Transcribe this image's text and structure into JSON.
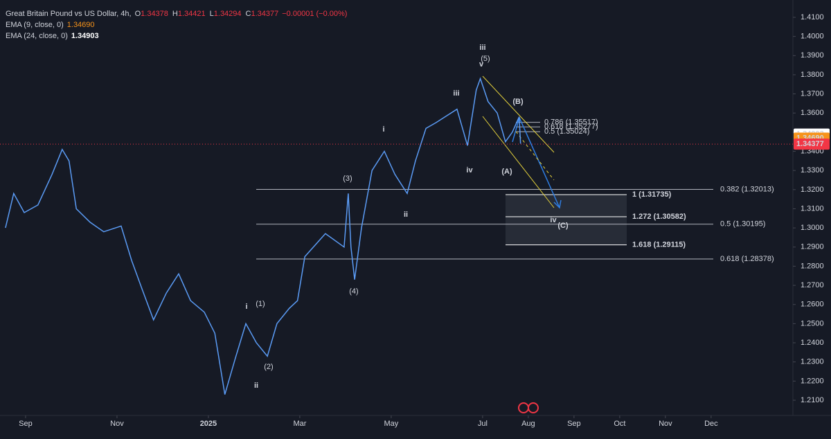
{
  "chart_data": {
    "type": "line",
    "title": "Great Britain Pound vs US Dollar, 4h,",
    "ohlc": [
      {
        "label": "O",
        "value": 1.34378
      },
      {
        "label": "H",
        "value": 1.34421
      },
      {
        "label": "L",
        "value": 1.34294
      },
      {
        "label": "C",
        "value": 1.34377
      }
    ],
    "change": "−0.00001 (−0.00%)",
    "indicators": [
      {
        "name": "EMA (9, close, 0)",
        "value": 1.3469,
        "label": "1.34690",
        "color": "#f7931a"
      },
      {
        "name": "EMA (24, close, 0)",
        "value": 1.34903,
        "label": "1.34903",
        "color": "#ffffff"
      }
    ],
    "series": [
      {
        "name": "GBPUSD",
        "color": "#5b9cf6",
        "x": [
          -0.44,
          -0.26,
          -0.03,
          0.27,
          0.58,
          0.8,
          0.95,
          1.11,
          1.41,
          1.71,
          2.09,
          2.32,
          2.55,
          2.8,
          3.08,
          3.35,
          3.61,
          3.91,
          4.14,
          4.36,
          4.59,
          4.82,
          5.05,
          5.29,
          5.5,
          5.77,
          5.95,
          6.11,
          6.56,
          6.97,
          7.06,
          7.12,
          7.2,
          7.35,
          7.58,
          7.85,
          8.08,
          8.35,
          8.53,
          8.76,
          8.98,
          9.44,
          9.67,
          9.86,
          9.95,
          10.12,
          10.32,
          10.5,
          10.65,
          10.8,
          10.83
        ],
        "values": [
          1.3,
          1.318,
          1.308,
          1.312,
          1.328,
          1.341,
          1.335,
          1.31,
          1.303,
          1.298,
          1.301,
          1.283,
          1.268,
          1.252,
          1.266,
          1.276,
          1.262,
          1.256,
          1.245,
          1.213,
          1.232,
          1.25,
          1.24,
          1.233,
          1.25,
          1.258,
          1.262,
          1.285,
          1.297,
          1.29,
          1.318,
          1.29,
          1.273,
          1.3,
          1.33,
          1.34,
          1.328,
          1.318,
          1.335,
          1.352,
          1.355,
          1.362,
          1.343,
          1.372,
          1.378,
          1.366,
          1.36,
          1.345,
          1.35,
          1.358,
          1.344
        ]
      }
    ],
    "xlim": [
      -0.56,
      16.79
    ],
    "xticks": [
      {
        "value": 0,
        "label": "Sep"
      },
      {
        "value": 2,
        "label": "Nov"
      },
      {
        "value": 4,
        "label": "2025"
      },
      {
        "value": 6,
        "label": "Mar"
      },
      {
        "value": 8,
        "label": "May"
      },
      {
        "value": 10,
        "label": "Jul"
      },
      {
        "value": 11,
        "label": "Aug"
      },
      {
        "value": 12,
        "label": "Sep"
      },
      {
        "value": 13,
        "label": "Oct"
      },
      {
        "value": 14,
        "label": "Nov"
      },
      {
        "value": 15,
        "label": "Dec"
      }
    ],
    "ylim": [
      1.20385,
      1.41904
    ],
    "yticks": [
      {
        "value": 1.21,
        "label": "1.2100"
      },
      {
        "value": 1.22,
        "label": "1.2200"
      },
      {
        "value": 1.23,
        "label": "1.2300"
      },
      {
        "value": 1.24,
        "label": "1.2400"
      },
      {
        "value": 1.25,
        "label": "1.2500"
      },
      {
        "value": 1.26,
        "label": "1.2600"
      },
      {
        "value": 1.27,
        "label": "1.2700"
      },
      {
        "value": 1.28,
        "label": "1.2800"
      },
      {
        "value": 1.29,
        "label": "1.2900"
      },
      {
        "value": 1.3,
        "label": "1.3000"
      },
      {
        "value": 1.31,
        "label": "1.3100"
      },
      {
        "value": 1.32,
        "label": "1.3200"
      },
      {
        "value": 1.33,
        "label": "1.3300"
      },
      {
        "value": 1.34,
        "label": "1.3400"
      },
      {
        "value": 1.35,
        "label": "1.3500"
      },
      {
        "value": 1.36,
        "label": "1.3600"
      },
      {
        "value": 1.37,
        "label": "1.3700"
      },
      {
        "value": 1.38,
        "label": "1.3800"
      },
      {
        "value": 1.39,
        "label": "1.3900"
      },
      {
        "value": 1.4,
        "label": "1.4000"
      },
      {
        "value": 1.41,
        "label": "1.4100"
      }
    ],
    "grid": false,
    "retracements": [
      {
        "label": "0.382 (1.32013)",
        "value": 1.32013
      },
      {
        "label": "0.5 (1.30195)",
        "value": 1.30195
      },
      {
        "label": "0.618 (1.28378)",
        "value": 1.28378
      }
    ],
    "extensions": [
      {
        "label": "1 (1.31735)",
        "value": 1.31735
      },
      {
        "label": "1.272 (1.30582)",
        "value": 1.30582
      },
      {
        "label": "1.618 (1.29115)",
        "value": 1.29115
      }
    ],
    "minor_retracements": [
      {
        "label": "0.786 (1.35517)",
        "value": 1.35517
      },
      {
        "label": "0.618 (1.35277)",
        "value": 1.35277
      },
      {
        "label": "0.5 (1.35024)",
        "value": 1.35024
      }
    ],
    "wave_labels": [
      {
        "text": "i",
        "color": "#ffffff"
      },
      {
        "text": "(1)",
        "color": "#f23645"
      },
      {
        "text": "(2)",
        "color": "#f23645"
      },
      {
        "text": "ii",
        "color": "#ffffff"
      },
      {
        "text": "(3)",
        "color": "#f23645"
      },
      {
        "text": "(4)",
        "color": "#f23645"
      },
      {
        "text": "i",
        "color": "#ffffff"
      },
      {
        "text": "ii",
        "color": "#ffffff"
      },
      {
        "text": "iii",
        "color": "#ffffff"
      },
      {
        "text": "iv",
        "color": "#ffffff"
      },
      {
        "text": "v",
        "color": "#ffffff"
      },
      {
        "text": "iii",
        "color": "#ffffff"
      },
      {
        "text": "(5)",
        "color": "#f23645"
      },
      {
        "text": "(A)",
        "color": "#5b9cf6"
      },
      {
        "text": "(B)",
        "color": "#5b9cf6"
      },
      {
        "text": "(C)",
        "color": "#5b9cf6"
      },
      {
        "text": "iv",
        "color": "#ffffff"
      }
    ]
  }
}
